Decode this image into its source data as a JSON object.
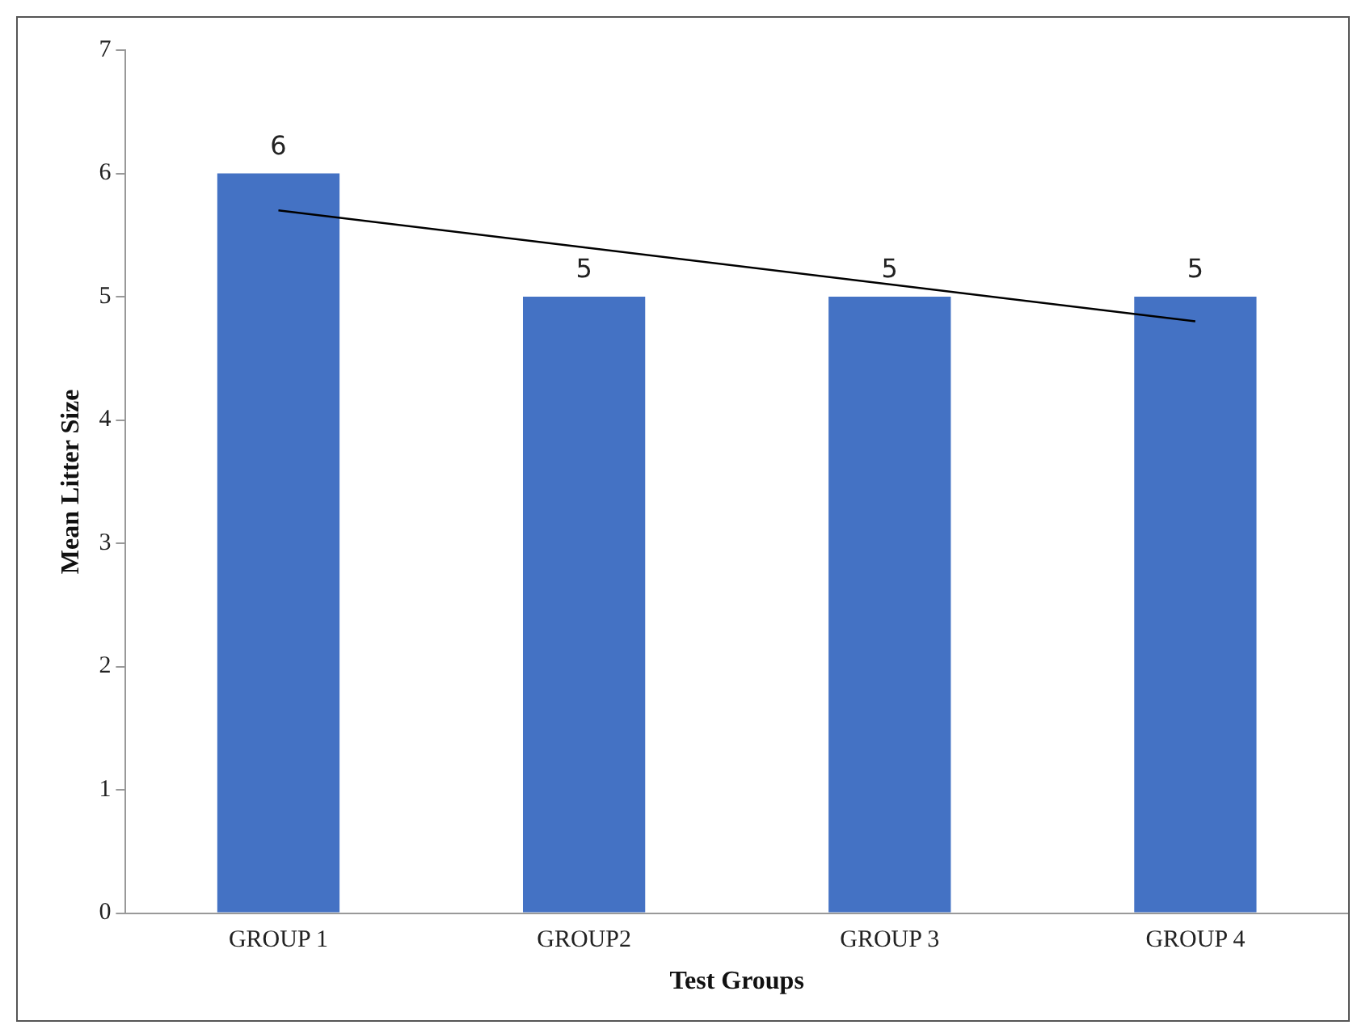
{
  "chart_data": {
    "type": "bar",
    "xlabel": "Test Groups",
    "ylabel": "Mean Litter Size",
    "categories": [
      "GROUP 1",
      "GROUP2",
      "GROUP 3",
      "GROUP 4"
    ],
    "series": [
      {
        "color": "#4472c4",
        "values": [
          6,
          5,
          5,
          5
        ],
        "value_labels": [
          "6",
          "5",
          "5",
          "5"
        ]
      },
      {
        "type": "line",
        "color": "#000000",
        "x": [
          "GROUP 1",
          "GROUP2",
          "GROUP 3",
          "GROUP 4"
        ],
        "values": [
          5.7,
          5.4,
          5.1,
          4.8
        ],
        "marker": "none",
        "line_style": "solid"
      }
    ],
    "ylim": [
      0,
      7
    ],
    "yticks": [
      0,
      1,
      2,
      3,
      4,
      5,
      6,
      7
    ],
    "grid": false,
    "legend": false
  }
}
